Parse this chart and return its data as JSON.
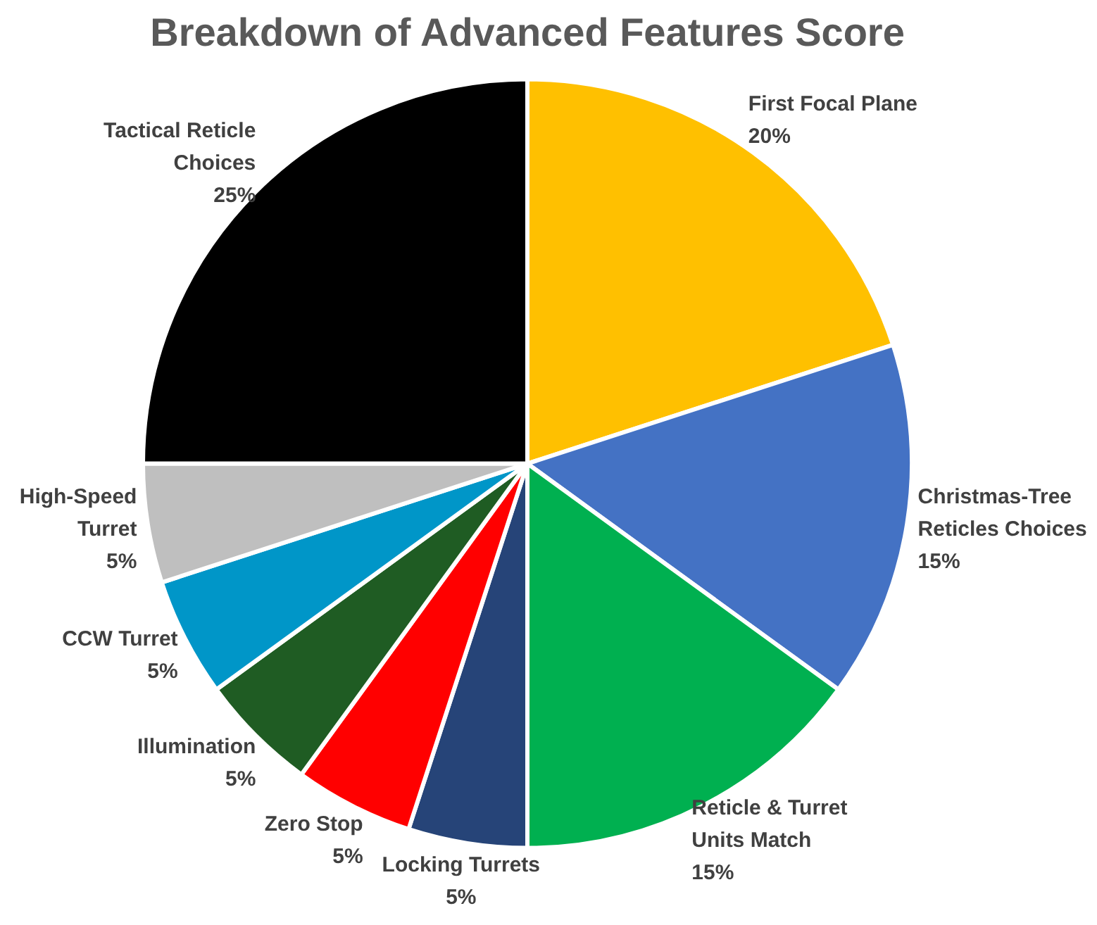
{
  "chart_data": {
    "type": "pie",
    "title": "Breakdown of Advanced Features Score",
    "categories": [
      "First Focal Plane",
      "Christmas-Tree Reticles Choices",
      "Reticle & Turret Units Match",
      "Locking Turrets",
      "Zero Stop",
      "Illumination",
      "CCW Turret",
      "High-Speed Turret",
      "Tactical Reticle Choices"
    ],
    "values": [
      20,
      15,
      15,
      5,
      5,
      5,
      5,
      5,
      25
    ],
    "value_labels": [
      "20%",
      "15%",
      "15%",
      "5%",
      "5%",
      "5%",
      "5%",
      "5%",
      "25%"
    ],
    "colors": [
      "#ffc000",
      "#4472c4",
      "#00b050",
      "#264478",
      "#ff0000",
      "#1f5c23",
      "#0096c8",
      "#bfbfbf",
      "#000000"
    ],
    "legend": false
  }
}
